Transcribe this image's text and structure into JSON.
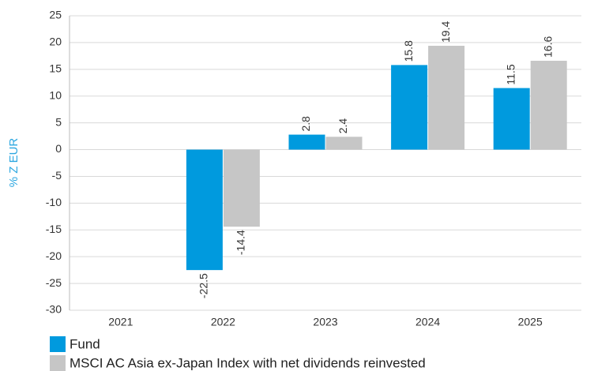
{
  "chart_data": {
    "type": "bar",
    "y_label": "% Z EUR",
    "categories": [
      "2021",
      "2022",
      "2023",
      "2024",
      "2025"
    ],
    "series": [
      {
        "name": "Fund",
        "color": "#009ade",
        "values": [
          null,
          -22.5,
          2.8,
          15.8,
          11.5
        ]
      },
      {
        "name": "MSCI AC Asia ex-Japan Index with net dividends reinvested",
        "color": "#c6c6c6",
        "values": [
          null,
          -14.4,
          2.4,
          19.4,
          16.6
        ]
      }
    ],
    "ylim": [
      -30,
      25
    ],
    "yticks": [
      -30,
      -25,
      -20,
      -15,
      -10,
      -5,
      0,
      5,
      10,
      15,
      20,
      25
    ],
    "grid": true,
    "legend": "bottom-left"
  }
}
